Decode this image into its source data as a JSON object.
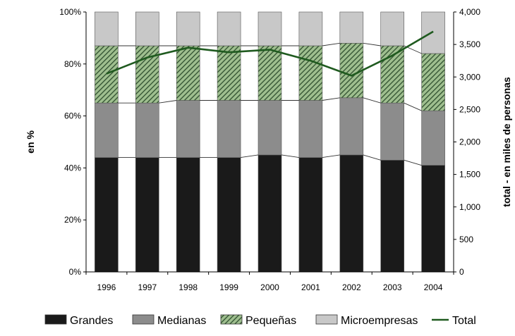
{
  "chart_data": {
    "type": "bar",
    "stacked": true,
    "percent_stacked": true,
    "categories": [
      "1996",
      "1997",
      "1998",
      "1999",
      "2000",
      "2001",
      "2002",
      "2003",
      "2004"
    ],
    "series": [
      {
        "name": "Grandes",
        "values": [
          44,
          44,
          44,
          44,
          45,
          44,
          45,
          43,
          41
        ],
        "color": "#1a1a1a",
        "axis": "left"
      },
      {
        "name": "Medianas",
        "values": [
          21,
          21,
          22,
          22,
          21,
          22,
          22,
          22,
          21
        ],
        "color": "#8c8c8c",
        "axis": "left"
      },
      {
        "name": "Pequeñas",
        "values": [
          22,
          22,
          21,
          21,
          21,
          21,
          21,
          22,
          22
        ],
        "color": "#4f7a4f",
        "pattern": "diagonal-hatch",
        "axis": "left"
      },
      {
        "name": "Microempresas",
        "values": [
          13,
          13,
          13,
          13,
          13,
          13,
          12,
          13,
          16
        ],
        "color": "#c8c8c8",
        "axis": "left"
      },
      {
        "name": "Total",
        "type": "line",
        "values": [
          3050,
          3300,
          3450,
          3380,
          3420,
          3250,
          3020,
          3330,
          3700
        ],
        "color": "#1f5a1f",
        "axis": "right"
      }
    ],
    "ylabel": "en %",
    "ylabel_right": "total - en miles de personas",
    "ylim": [
      0,
      100
    ],
    "ylim_right": [
      0,
      4000
    ],
    "yticks": [
      "0%",
      "20%",
      "40%",
      "60%",
      "80%",
      "100%"
    ],
    "yticks_right": [
      "0",
      "500",
      "1,000",
      "1,500",
      "2,000",
      "2,500",
      "3,000",
      "3,500",
      "4,000"
    ],
    "legend_position": "bottom",
    "grid": false
  }
}
